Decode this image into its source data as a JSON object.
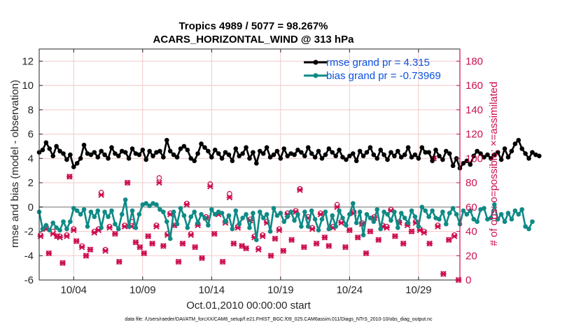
{
  "chart_data": {
    "type": "line",
    "title_line1": "Tropics 4989 / 5077 = 98.267%",
    "title_line2": "ACARS_HORIZONTAL_WIND @ 313 hPa",
    "xlabel": "Oct.01,2010 00:00:00 start",
    "ylabel_left": "rmse and bias (model - observation)",
    "ylabel_right": "# of obs: o=possible; ×=assimilated",
    "x_range_days": [
      1.5,
      32.0
    ],
    "ylim_left": [
      -6,
      13
    ],
    "ylim_right": [
      0,
      190
    ],
    "x_ticks": [
      {
        "day": 4,
        "label": "10/04"
      },
      {
        "day": 9,
        "label": "10/09"
      },
      {
        "day": 14,
        "label": "10/14"
      },
      {
        "day": 19,
        "label": "10/19"
      },
      {
        "day": 24,
        "label": "10/24"
      },
      {
        "day": 29,
        "label": "10/29"
      }
    ],
    "y_ticks_left": [
      {
        "v": -6,
        "label": "-6"
      },
      {
        "v": -4,
        "label": "-4"
      },
      {
        "v": -2,
        "label": "-2"
      },
      {
        "v": 0,
        "label": "0"
      },
      {
        "v": 2,
        "label": "2"
      },
      {
        "v": 4,
        "label": "4"
      },
      {
        "v": 6,
        "label": "6"
      },
      {
        "v": 8,
        "label": "8"
      },
      {
        "v": 10,
        "label": "10"
      },
      {
        "v": 12,
        "label": "12"
      }
    ],
    "y_ticks_right": [
      {
        "v": 0,
        "label": "0"
      },
      {
        "v": 20,
        "label": "20"
      },
      {
        "v": 40,
        "label": "40"
      },
      {
        "v": 60,
        "label": "60"
      },
      {
        "v": 80,
        "label": "80"
      },
      {
        "v": 100,
        "label": "100"
      },
      {
        "v": 120,
        "label": "120"
      },
      {
        "v": 140,
        "label": "140"
      },
      {
        "v": 160,
        "label": "160"
      },
      {
        "v": 180,
        "label": "180"
      }
    ],
    "x_start": 1.5,
    "x_step": 0.25,
    "series": [
      {
        "name": "rmse grand pr = 4.315",
        "color": "#000000",
        "values": [
          4.5,
          4.7,
          5.3,
          4.8,
          4.2,
          5.0,
          4.6,
          4.4,
          3.9,
          4.3,
          3.3,
          3.6,
          4.0,
          5.1,
          4.4,
          4.3,
          4.5,
          4.1,
          4.6,
          4.3,
          4.0,
          4.9,
          4.4,
          4.2,
          4.6,
          4.5,
          4.0,
          4.8,
          4.4,
          4.3,
          4.7,
          3.9,
          4.6,
          4.2,
          4.5,
          4.6,
          4.1,
          5.5,
          4.6,
          4.3,
          4.1,
          4.8,
          5.0,
          4.7,
          4.0,
          3.8,
          4.4,
          5.2,
          4.9,
          4.6,
          4.1,
          4.7,
          4.4,
          4.0,
          4.5,
          4.3,
          3.8,
          4.8,
          4.2,
          4.4,
          4.9,
          4.0,
          4.5,
          3.6,
          4.6,
          4.4,
          4.9,
          4.1,
          4.3,
          4.6,
          4.0,
          4.8,
          4.2,
          4.4,
          4.3,
          4.7,
          4.5,
          4.2,
          4.9,
          4.4,
          4.1,
          4.6,
          4.0,
          4.3,
          4.8,
          4.5,
          4.2,
          4.7,
          4.1,
          3.9,
          4.2,
          4.4,
          3.8,
          4.6,
          4.2,
          4.5,
          4.9,
          4.3,
          4.0,
          4.7,
          4.3,
          3.9,
          4.5,
          4.2,
          4.6,
          4.1,
          4.3,
          4.9,
          4.1,
          4.3,
          4.0,
          4.9,
          4.5,
          4.5,
          3.8,
          4.7,
          4.2,
          3.9,
          4.6,
          4.4,
          3.4,
          4.0,
          3.2,
          3.6,
          3.8,
          3.5,
          4.2,
          4.6,
          4.4,
          4.1,
          4.3,
          4.0,
          4.3,
          4.5,
          3.9,
          4.8,
          4.1,
          4.6,
          5.2,
          5.5,
          4.8,
          4.4,
          4.0,
          4.5,
          4.3,
          4.2
        ]
      },
      {
        "name": "bias grand pr = -0.73969",
        "color": "#0f8a86",
        "values": [
          -0.4,
          -1.8,
          -1.5,
          -1.9,
          -1.3,
          -1.7,
          -1.9,
          -1.2,
          -1.8,
          -1.2,
          -0.1,
          -0.3,
          -0.6,
          -0.2,
          -1.6,
          -0.4,
          -0.8,
          -0.3,
          -1.7,
          -0.4,
          -0.8,
          -0.3,
          -1.4,
          -1.8,
          -0.6,
          0.6,
          -1.6,
          -0.3,
          -1.7,
          -0.6,
          0.2,
          0.3,
          0.1,
          0.3,
          0.2,
          -0.2,
          -0.4,
          -1.2,
          -2.6,
          -0.4,
          -1.4,
          -0.1,
          -0.7,
          -1.7,
          -0.8,
          -0.4,
          -1.3,
          -0.6,
          -0.9,
          -1.5,
          -0.2,
          -0.6,
          -0.4,
          -0.5,
          -1.2,
          -0.7,
          -1.8,
          -0.3,
          -1.4,
          -0.9,
          -0.6,
          -1.7,
          -0.5,
          -2.7,
          -0.4,
          -0.9,
          -0.6,
          -2.0,
          -0.1,
          -0.7,
          -0.5,
          -1.2,
          -0.8,
          -0.4,
          -1.1,
          -0.6,
          -1.6,
          -0.4,
          -1.6,
          -0.3,
          -1.0,
          -1.9,
          -1.0,
          -0.4,
          -1.8,
          -0.7,
          -1.6,
          -0.3,
          -0.9,
          -1.5,
          -0.6,
          0.3,
          -1.3,
          -0.4,
          -2.3,
          -0.6,
          -0.9,
          -1.2,
          -0.2,
          -1.8,
          -0.4,
          -0.6,
          -1.1,
          -0.4,
          -1.7,
          -0.5,
          -0.9,
          -1.3,
          -0.3,
          -0.8,
          -1.6,
          0.0,
          -0.3,
          -0.8,
          -0.3,
          -0.9,
          -1.0,
          -0.4,
          -1.4,
          -0.5,
          -0.1,
          -0.6,
          -1.4,
          -0.3,
          -0.6,
          -0.3,
          -1.0,
          -1.2,
          -0.2,
          -0.1,
          -1.0,
          -0.9,
          0.2,
          -1.0,
          -0.6,
          -1.2,
          -0.5,
          -1.0,
          -0.3,
          -0.6,
          -0.2,
          -1.6,
          -1.8,
          -1.2
        ]
      }
    ],
    "obs_possible": [
      {
        "day": 1.6,
        "v": 37
      },
      {
        "day": 2.0,
        "v": 44
      },
      {
        "day": 2.2,
        "v": 22
      },
      {
        "day": 2.5,
        "v": 40
      },
      {
        "day": 2.8,
        "v": 36
      },
      {
        "day": 3.0,
        "v": 36
      },
      {
        "day": 3.2,
        "v": 14
      },
      {
        "day": 3.5,
        "v": 37
      },
      {
        "day": 3.7,
        "v": 85
      },
      {
        "day": 4.0,
        "v": 42
      },
      {
        "day": 4.2,
        "v": 32
      },
      {
        "day": 4.6,
        "v": 28
      },
      {
        "day": 4.9,
        "v": 20
      },
      {
        "day": 5.2,
        "v": 25
      },
      {
        "day": 5.5,
        "v": 40
      },
      {
        "day": 5.8,
        "v": 42
      },
      {
        "day": 6.0,
        "v": 72
      },
      {
        "day": 6.3,
        "v": 25
      },
      {
        "day": 6.6,
        "v": 44
      },
      {
        "day": 7.0,
        "v": 38
      },
      {
        "day": 7.3,
        "v": 15
      },
      {
        "day": 7.7,
        "v": 45
      },
      {
        "day": 7.9,
        "v": 80
      },
      {
        "day": 8.2,
        "v": 48
      },
      {
        "day": 8.5,
        "v": 31
      },
      {
        "day": 8.8,
        "v": 27
      },
      {
        "day": 9.1,
        "v": 22
      },
      {
        "day": 9.4,
        "v": 36
      },
      {
        "day": 9.7,
        "v": 30
      },
      {
        "day": 10.0,
        "v": 45
      },
      {
        "day": 10.2,
        "v": 84
      },
      {
        "day": 10.5,
        "v": 28
      },
      {
        "day": 10.8,
        "v": 38
      },
      {
        "day": 11.0,
        "v": 55
      },
      {
        "day": 11.3,
        "v": 45
      },
      {
        "day": 11.6,
        "v": 15
      },
      {
        "day": 11.9,
        "v": 30
      },
      {
        "day": 12.2,
        "v": 63
      },
      {
        "day": 12.5,
        "v": 38
      },
      {
        "day": 12.8,
        "v": 27
      },
      {
        "day": 13.0,
        "v": 46
      },
      {
        "day": 13.3,
        "v": 18
      },
      {
        "day": 13.6,
        "v": 52
      },
      {
        "day": 13.9,
        "v": 79
      },
      {
        "day": 14.2,
        "v": 38
      },
      {
        "day": 14.5,
        "v": 55
      },
      {
        "day": 14.8,
        "v": 15
      },
      {
        "day": 15.0,
        "v": 48
      },
      {
        "day": 15.3,
        "v": 71
      },
      {
        "day": 15.6,
        "v": 30
      },
      {
        "day": 15.9,
        "v": 44
      },
      {
        "day": 16.2,
        "v": 28
      },
      {
        "day": 16.5,
        "v": 26
      },
      {
        "day": 16.8,
        "v": 50
      },
      {
        "day": 17.1,
        "v": 36
      },
      {
        "day": 17.4,
        "v": 26
      },
      {
        "day": 17.7,
        "v": 37
      },
      {
        "day": 18.0,
        "v": 48
      },
      {
        "day": 18.3,
        "v": 20
      },
      {
        "day": 18.6,
        "v": 34
      },
      {
        "day": 18.9,
        "v": 42
      },
      {
        "day": 19.2,
        "v": 24
      },
      {
        "day": 19.5,
        "v": 55
      },
      {
        "day": 19.8,
        "v": 33
      },
      {
        "day": 20.1,
        "v": 57
      },
      {
        "day": 20.4,
        "v": 75
      },
      {
        "day": 20.7,
        "v": 27
      },
      {
        "day": 21.0,
        "v": 52
      },
      {
        "day": 21.3,
        "v": 43
      },
      {
        "day": 21.6,
        "v": 30
      },
      {
        "day": 21.9,
        "v": 55
      },
      {
        "day": 22.2,
        "v": 35
      },
      {
        "day": 22.5,
        "v": 28
      },
      {
        "day": 22.8,
        "v": 44
      },
      {
        "day": 23.1,
        "v": 62
      },
      {
        "day": 23.4,
        "v": 48
      },
      {
        "day": 23.7,
        "v": 27
      },
      {
        "day": 24.0,
        "v": 41
      },
      {
        "day": 24.3,
        "v": 56
      },
      {
        "day": 24.6,
        "v": 35
      },
      {
        "day": 24.9,
        "v": 47
      },
      {
        "day": 25.2,
        "v": 22
      },
      {
        "day": 25.5,
        "v": 40
      },
      {
        "day": 25.8,
        "v": 52
      },
      {
        "day": 26.1,
        "v": 33
      },
      {
        "day": 26.4,
        "v": 45
      },
      {
        "day": 26.7,
        "v": 44
      },
      {
        "day": 27.0,
        "v": 58
      },
      {
        "day": 27.3,
        "v": 36
      },
      {
        "day": 27.6,
        "v": 48
      },
      {
        "day": 27.9,
        "v": 30
      },
      {
        "day": 28.2,
        "v": 46
      },
      {
        "day": 28.5,
        "v": 40
      },
      {
        "day": 28.8,
        "v": 48
      },
      {
        "day": 29.1,
        "v": 42
      },
      {
        "day": 29.4,
        "v": 40
      },
      {
        "day": 29.8,
        "v": 30
      },
      {
        "day": 30.1,
        "v": 100
      },
      {
        "day": 30.4,
        "v": 45
      },
      {
        "day": 30.8,
        "v": 5
      },
      {
        "day": 31.2,
        "v": 33
      },
      {
        "day": 31.6,
        "v": 37
      },
      {
        "day": 31.9,
        "v": 0
      }
    ],
    "obs_assimilated": [
      {
        "day": 1.6,
        "v": 36
      },
      {
        "day": 2.0,
        "v": 42
      },
      {
        "day": 2.2,
        "v": 22
      },
      {
        "day": 2.5,
        "v": 38
      },
      {
        "day": 2.8,
        "v": 36
      },
      {
        "day": 3.0,
        "v": 35
      },
      {
        "day": 3.2,
        "v": 14
      },
      {
        "day": 3.5,
        "v": 36
      },
      {
        "day": 3.7,
        "v": 85
      },
      {
        "day": 4.0,
        "v": 41
      },
      {
        "day": 4.2,
        "v": 32
      },
      {
        "day": 4.6,
        "v": 27
      },
      {
        "day": 4.9,
        "v": 20
      },
      {
        "day": 5.2,
        "v": 25
      },
      {
        "day": 5.5,
        "v": 39
      },
      {
        "day": 5.8,
        "v": 41
      },
      {
        "day": 6.0,
        "v": 70
      },
      {
        "day": 6.3,
        "v": 24
      },
      {
        "day": 6.6,
        "v": 43
      },
      {
        "day": 7.0,
        "v": 38
      },
      {
        "day": 7.3,
        "v": 15
      },
      {
        "day": 7.7,
        "v": 44
      },
      {
        "day": 7.9,
        "v": 80
      },
      {
        "day": 8.2,
        "v": 44
      },
      {
        "day": 8.5,
        "v": 31
      },
      {
        "day": 8.8,
        "v": 27
      },
      {
        "day": 9.1,
        "v": 22
      },
      {
        "day": 9.4,
        "v": 36
      },
      {
        "day": 9.7,
        "v": 30
      },
      {
        "day": 10.0,
        "v": 44
      },
      {
        "day": 10.2,
        "v": 80
      },
      {
        "day": 10.5,
        "v": 28
      },
      {
        "day": 10.8,
        "v": 37
      },
      {
        "day": 11.0,
        "v": 54
      },
      {
        "day": 11.3,
        "v": 45
      },
      {
        "day": 11.6,
        "v": 15
      },
      {
        "day": 11.9,
        "v": 30
      },
      {
        "day": 12.2,
        "v": 62
      },
      {
        "day": 12.5,
        "v": 37
      },
      {
        "day": 12.8,
        "v": 27
      },
      {
        "day": 13.0,
        "v": 45
      },
      {
        "day": 13.3,
        "v": 18
      },
      {
        "day": 13.6,
        "v": 51
      },
      {
        "day": 13.9,
        "v": 77
      },
      {
        "day": 14.2,
        "v": 38
      },
      {
        "day": 14.5,
        "v": 54
      },
      {
        "day": 14.8,
        "v": 15
      },
      {
        "day": 15.0,
        "v": 47
      },
      {
        "day": 15.3,
        "v": 68
      },
      {
        "day": 15.6,
        "v": 30
      },
      {
        "day": 15.9,
        "v": 43
      },
      {
        "day": 16.2,
        "v": 28
      },
      {
        "day": 16.5,
        "v": 26
      },
      {
        "day": 16.8,
        "v": 49
      },
      {
        "day": 17.1,
        "v": 35
      },
      {
        "day": 17.4,
        "v": 25
      },
      {
        "day": 17.7,
        "v": 36
      },
      {
        "day": 18.0,
        "v": 47
      },
      {
        "day": 18.3,
        "v": 20
      },
      {
        "day": 18.6,
        "v": 34
      },
      {
        "day": 18.9,
        "v": 41
      },
      {
        "day": 19.2,
        "v": 24
      },
      {
        "day": 19.5,
        "v": 54
      },
      {
        "day": 19.8,
        "v": 33
      },
      {
        "day": 20.1,
        "v": 56
      },
      {
        "day": 20.4,
        "v": 74
      },
      {
        "day": 20.7,
        "v": 27
      },
      {
        "day": 21.0,
        "v": 51
      },
      {
        "day": 21.3,
        "v": 42
      },
      {
        "day": 21.6,
        "v": 30
      },
      {
        "day": 21.9,
        "v": 54
      },
      {
        "day": 22.2,
        "v": 35
      },
      {
        "day": 22.5,
        "v": 28
      },
      {
        "day": 22.8,
        "v": 43
      },
      {
        "day": 23.1,
        "v": 60
      },
      {
        "day": 23.4,
        "v": 47
      },
      {
        "day": 23.7,
        "v": 27
      },
      {
        "day": 24.0,
        "v": 41
      },
      {
        "day": 24.3,
        "v": 55
      },
      {
        "day": 24.6,
        "v": 35
      },
      {
        "day": 24.9,
        "v": 46
      },
      {
        "day": 25.2,
        "v": 22
      },
      {
        "day": 25.5,
        "v": 40
      },
      {
        "day": 25.8,
        "v": 51
      },
      {
        "day": 26.1,
        "v": 33
      },
      {
        "day": 26.4,
        "v": 44
      },
      {
        "day": 26.7,
        "v": 43
      },
      {
        "day": 27.0,
        "v": 57
      },
      {
        "day": 27.3,
        "v": 36
      },
      {
        "day": 27.6,
        "v": 47
      },
      {
        "day": 27.9,
        "v": 30
      },
      {
        "day": 28.2,
        "v": 45
      },
      {
        "day": 28.5,
        "v": 40
      },
      {
        "day": 28.8,
        "v": 47
      },
      {
        "day": 29.1,
        "v": 41
      },
      {
        "day": 29.4,
        "v": 39
      },
      {
        "day": 29.8,
        "v": 30
      },
      {
        "day": 30.1,
        "v": 100
      },
      {
        "day": 30.4,
        "v": 44
      },
      {
        "day": 30.8,
        "v": 5
      },
      {
        "day": 31.2,
        "v": 33
      },
      {
        "day": 31.6,
        "v": 36
      },
      {
        "day": 31.9,
        "v": 0
      }
    ],
    "colors": {
      "rmse": "#000000",
      "bias": "#0f8a86",
      "obs": "#cc0f4f",
      "legend_text": "#0b52e0",
      "zero_line": "#b3b3b3",
      "grid": "#f2c8c8"
    },
    "legend_position": "top-right",
    "grid": true
  },
  "footnote": "data file: /Users/raeder/DAI/ATM_forcXX/CAM6_setup/f.e21.FHIST_BGC.f09_025.CAM6assim.011/Diags_NTrS_2010-10/obs_diag_output.nc"
}
